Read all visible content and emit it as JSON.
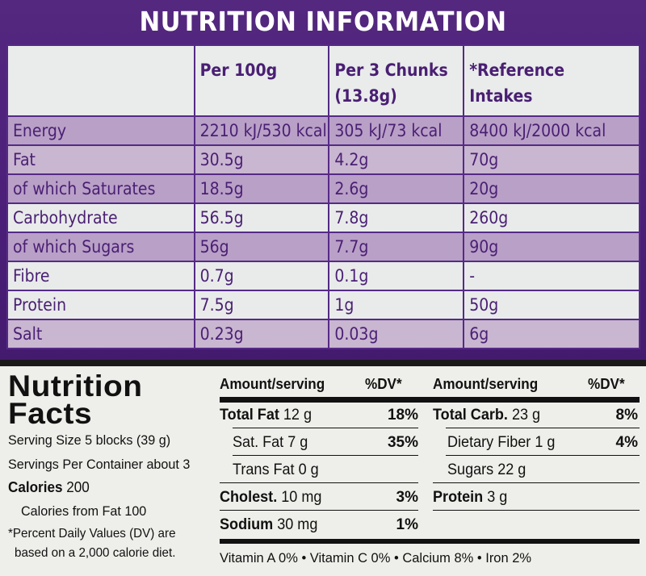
{
  "uk": {
    "title": "NUTRITION INFORMATION",
    "headers": {
      "col1": "Per 100g",
      "col2_line1": "Per 3 Chunks",
      "col2_line2": "(13.8g)",
      "col3_line1": "*Reference",
      "col3_line2": "Intakes"
    },
    "rows": [
      {
        "label": "Energy",
        "per100": "2210 kJ/530 kcal",
        "per3": "305 kJ/73 kcal",
        "ri": "8400 kJ/2000 kcal"
      },
      {
        "label": "Fat",
        "per100": "30.5g",
        "per3": "4.2g",
        "ri": "70g"
      },
      {
        "label": "of which Saturates",
        "per100": "18.5g",
        "per3": "2.6g",
        "ri": "20g"
      },
      {
        "label": "Carbohydrate",
        "per100": "56.5g",
        "per3": "7.8g",
        "ri": "260g"
      },
      {
        "label": "of which Sugars",
        "per100": "56g",
        "per3": "7.7g",
        "ri": "90g"
      },
      {
        "label": "Fibre",
        "per100": "0.7g",
        "per3": "0.1g",
        "ri": "-"
      },
      {
        "label": "Protein",
        "per100": "7.5g",
        "per3": "1g",
        "ri": "50g"
      },
      {
        "label": "Salt",
        "per100": "0.23g",
        "per3": "0.03g",
        "ri": "6g"
      }
    ]
  },
  "us": {
    "title_line1": "Nutrition",
    "title_line2": "Facts",
    "serving_size": "Serving Size 5 blocks (39 g)",
    "servings_per_container": "Servings Per Container about 3",
    "calories_label": "Calories",
    "calories_value": "200",
    "calories_from_fat": "Calories from Fat 100",
    "footnote_line1": "*Percent Daily Values (DV) are",
    "footnote_line2": "based on a 2,000 calorie diet.",
    "header_amount": "Amount/serving",
    "header_dv": "%DV*",
    "left_rows": [
      {
        "name": "Total Fat",
        "bold": true,
        "amount": "12 g",
        "dv": "18%"
      },
      {
        "name": "Sat. Fat",
        "bold": false,
        "amount": "7 g",
        "dv": "35%"
      },
      {
        "name": "Trans Fat",
        "bold": false,
        "amount": "0 g",
        "dv": ""
      },
      {
        "name": "Cholest.",
        "bold": true,
        "amount": "10 mg",
        "dv": "3%"
      },
      {
        "name": "Sodium",
        "bold": true,
        "amount": "30 mg",
        "dv": "1%"
      }
    ],
    "right_rows": [
      {
        "name": "Total Carb.",
        "bold": true,
        "amount": "23 g",
        "dv": "8%"
      },
      {
        "name": "Dietary Fiber",
        "bold": false,
        "amount": "1 g",
        "dv": "4%"
      },
      {
        "name": "Sugars",
        "bold": false,
        "amount": "22 g",
        "dv": ""
      },
      {
        "name": "Protein",
        "bold": true,
        "amount": "3 g",
        "dv": ""
      }
    ],
    "vitamins": "Vitamin A 0% • Vitamin C 0% • Calcium 8% • Iron 2%"
  }
}
